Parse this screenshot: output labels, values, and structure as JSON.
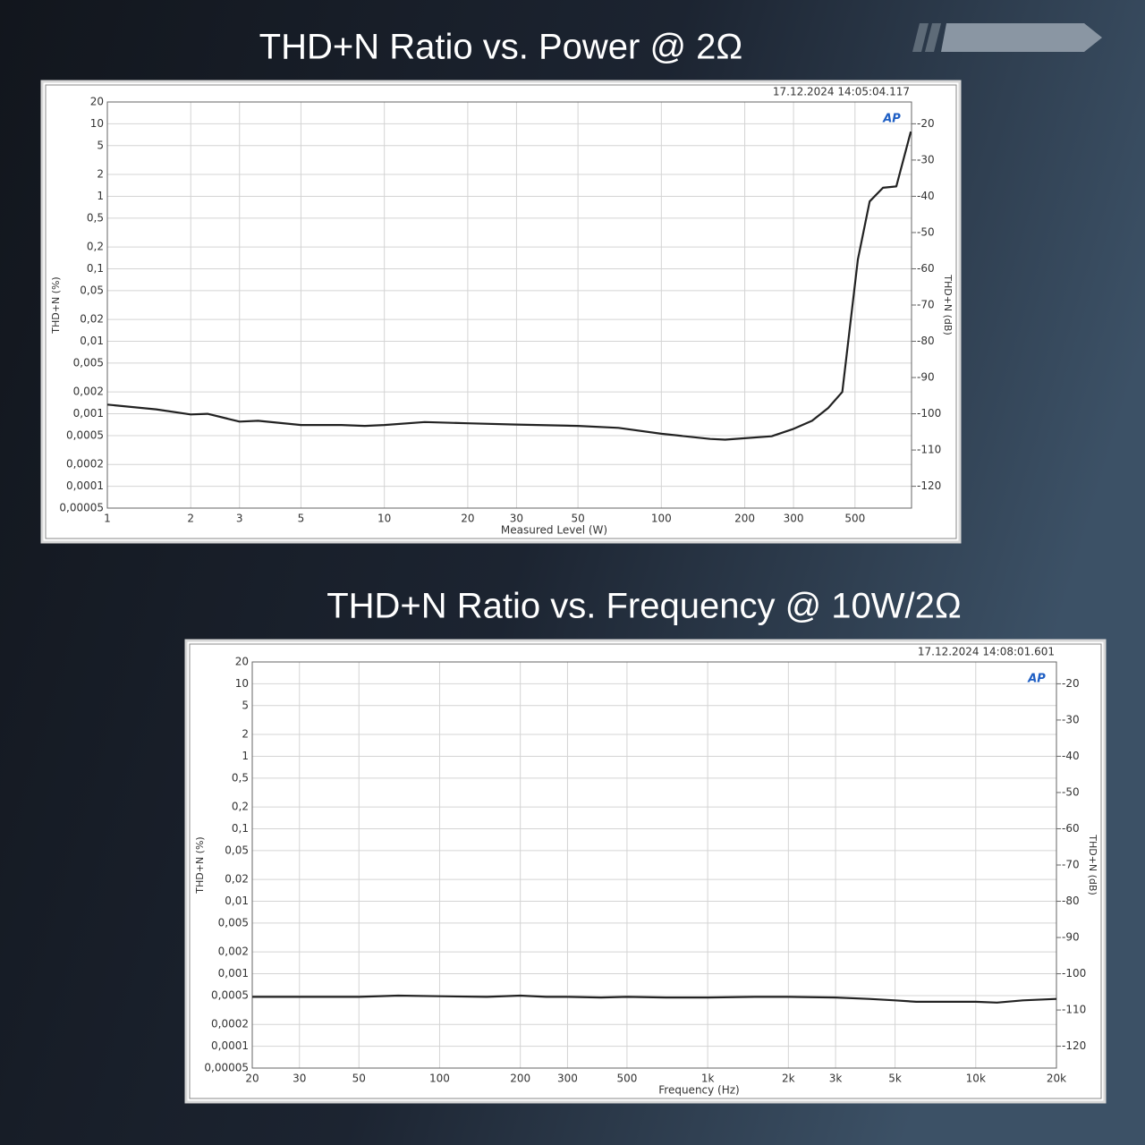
{
  "chart_data": [
    {
      "type": "line",
      "title": "THD+N Ratio vs. Power @ 2Ω",
      "timestamp": "17.12.2024 14:05:04.117",
      "logo": "AP",
      "xlabel": "Measured Level (W)",
      "ylabel": "THD+N (%)",
      "y2label": "THD+N (dB)",
      "xscale": "log",
      "yscale": "log",
      "grid": true,
      "color": "#222222",
      "x": [
        1,
        1.5,
        2,
        2.3,
        3,
        3.5,
        5,
        7,
        8.5,
        10,
        14,
        20,
        30,
        50,
        70,
        100,
        150,
        170,
        200,
        250,
        300,
        350,
        400,
        450,
        512,
        565,
        631,
        705,
        795
      ],
      "values": [
        0.00134,
        0.00115,
        0.00098,
        0.001,
        0.00078,
        0.0008,
        0.0007,
        0.0007,
        0.00068,
        0.0007,
        0.00077,
        0.00074,
        0.00071,
        0.00068,
        0.00064,
        0.00053,
        0.00045,
        0.00044,
        0.00046,
        0.00049,
        0.00062,
        0.0008,
        0.0012,
        0.002,
        0.134,
        0.85,
        1.31,
        1.37,
        7.8
      ],
      "xlim": [
        1,
        800
      ],
      "ylim": [
        5e-05,
        20
      ],
      "y2lim": [
        -126.02,
        -13.98
      ],
      "xticks": [
        1,
        2,
        3,
        5,
        10,
        20,
        30,
        50,
        100,
        200,
        300,
        500
      ],
      "yticks": [
        20,
        10,
        5,
        2,
        1,
        {
          "value": 0.5,
          "label": "0,5"
        },
        {
          "value": 0.2,
          "label": "0,2"
        },
        {
          "value": 0.1,
          "label": "0,1"
        },
        {
          "value": 0.05,
          "label": "0,05"
        },
        {
          "value": 0.02,
          "label": "0,02"
        },
        {
          "value": 0.01,
          "label": "0,01"
        },
        {
          "value": 0.005,
          "label": "0,005"
        },
        {
          "value": 0.002,
          "label": "0,002"
        },
        {
          "value": 0.001,
          "label": "0,001"
        },
        {
          "value": 0.0005,
          "label": "0,0005"
        },
        {
          "value": 0.0002,
          "label": "0,0002"
        },
        {
          "value": 0.0001,
          "label": "0,0001"
        },
        {
          "value": 5e-05,
          "label": "0,00005"
        }
      ],
      "y2ticks": [
        -20,
        -30,
        -40,
        -50,
        -60,
        -70,
        -80,
        -90,
        -100,
        -110,
        -120
      ]
    },
    {
      "type": "line",
      "title": "THD+N Ratio vs. Frequency @ 10W/2Ω",
      "timestamp": "17.12.2024 14:08:01.601",
      "logo": "AP",
      "xlabel": "Frequency (Hz)",
      "ylabel": "THD+N (%)",
      "y2label": "THD+N (dB)",
      "xscale": "log",
      "yscale": "log",
      "grid": true,
      "color": "#222222",
      "x": [
        20,
        30,
        50,
        70,
        100,
        150,
        200,
        250,
        300,
        400,
        500,
        700,
        1000,
        1500,
        2000,
        3000,
        4000,
        5000,
        6000,
        7000,
        10000,
        12000,
        15000,
        20000
      ],
      "values": [
        0.00048,
        0.00048,
        0.00048,
        0.0005,
        0.00049,
        0.00048,
        0.0005,
        0.00048,
        0.00048,
        0.00047,
        0.00048,
        0.00047,
        0.00047,
        0.00048,
        0.00048,
        0.00047,
        0.00045,
        0.00043,
        0.00041,
        0.00041,
        0.00041,
        0.0004,
        0.00043,
        0.00045
      ],
      "xlim": [
        20,
        20000
      ],
      "ylim": [
        5e-05,
        20
      ],
      "y2lim": [
        -126.02,
        -13.98
      ],
      "xticks": [
        20,
        30,
        50,
        100,
        200,
        300,
        500,
        {
          "value": 1000,
          "label": "1k"
        },
        {
          "value": 2000,
          "label": "2k"
        },
        {
          "value": 3000,
          "label": "3k"
        },
        {
          "value": 5000,
          "label": "5k"
        },
        {
          "value": 10000,
          "label": "10k"
        },
        {
          "value": 20000,
          "label": "20k"
        }
      ],
      "yticks": [
        20,
        10,
        5,
        2,
        1,
        {
          "value": 0.5,
          "label": "0,5"
        },
        {
          "value": 0.2,
          "label": "0,2"
        },
        {
          "value": 0.1,
          "label": "0,1"
        },
        {
          "value": 0.05,
          "label": "0,05"
        },
        {
          "value": 0.02,
          "label": "0,02"
        },
        {
          "value": 0.01,
          "label": "0,01"
        },
        {
          "value": 0.005,
          "label": "0,005"
        },
        {
          "value": 0.002,
          "label": "0,002"
        },
        {
          "value": 0.001,
          "label": "0,001"
        },
        {
          "value": 0.0005,
          "label": "0,0005"
        },
        {
          "value": 0.0002,
          "label": "0,0002"
        },
        {
          "value": 0.0001,
          "label": "0,0001"
        },
        {
          "value": 5e-05,
          "label": "0,00005"
        }
      ],
      "y2ticks": [
        -20,
        -30,
        -40,
        -50,
        -60,
        -70,
        -80,
        -90,
        -100,
        -110,
        -120
      ]
    }
  ]
}
